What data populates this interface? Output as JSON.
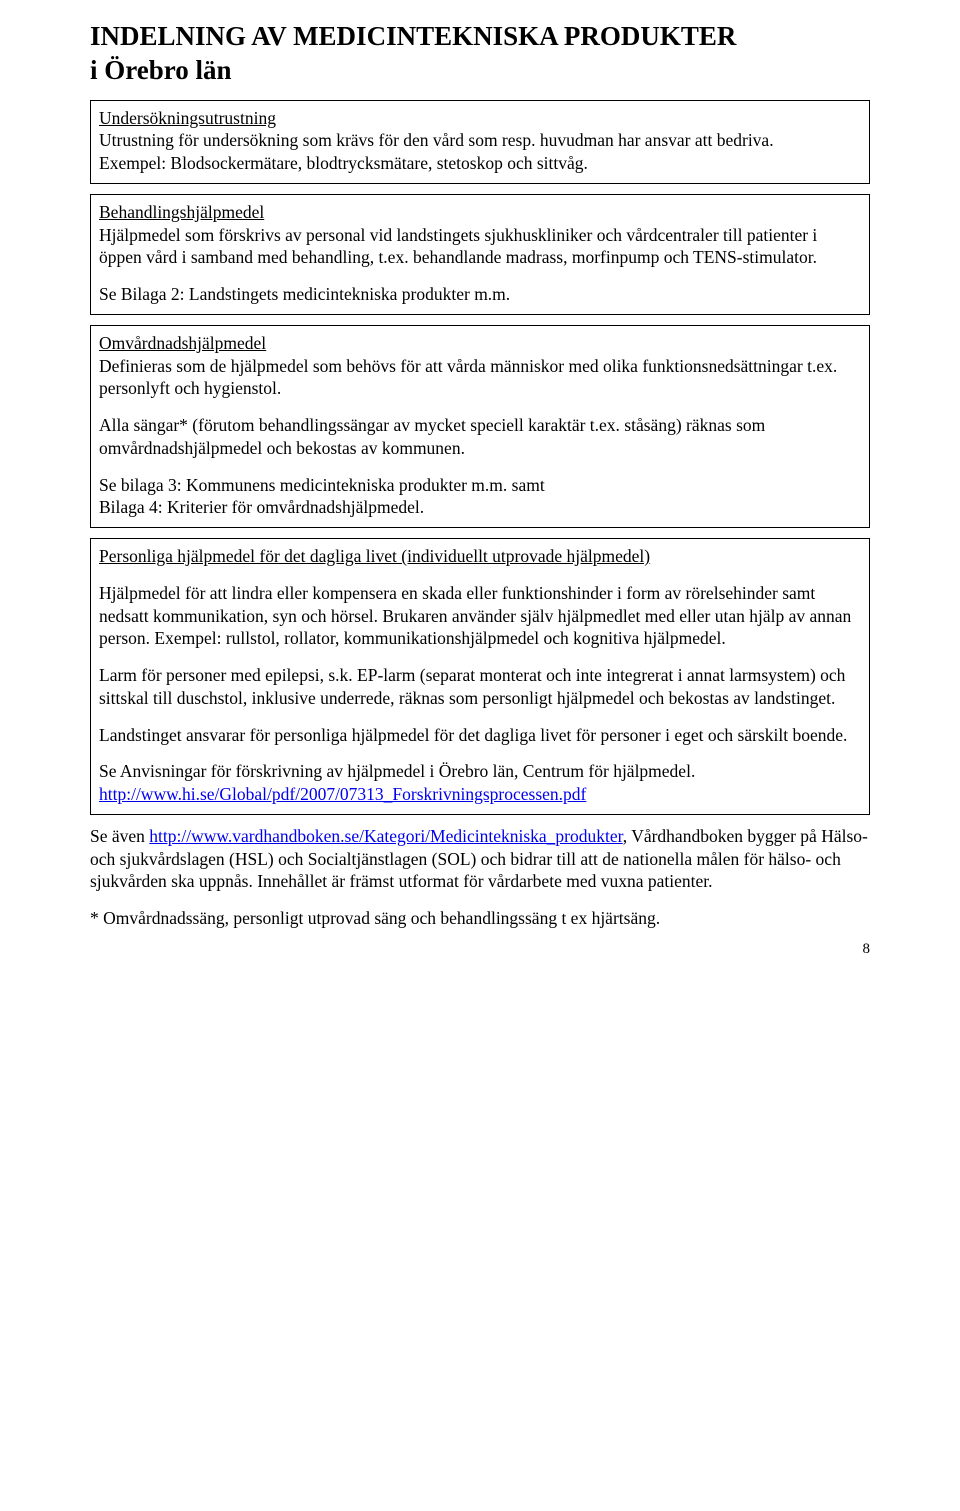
{
  "title_line1": "INDELNING AV MEDICINTEKNISKA PRODUKTER",
  "title_line2": "i Örebro län",
  "box1": {
    "heading": "Undersökningsutrustning",
    "p1": "Utrustning för undersökning som krävs för den vård som resp. huvudman har ansvar att bedriva.",
    "p2": "Exempel: Blodsockermätare, blodtrycksmätare, stetoskop och sittvåg."
  },
  "box2": {
    "heading": "Behandlingshjälpmedel",
    "p1": "Hjälpmedel som förskrivs av personal vid landstingets sjukhuskliniker och vårdcentraler till patienter i öppen vård i samband med behandling, t.ex. behandlande madrass, morfinpump och TENS-stimulator.",
    "p2": "Se Bilaga 2: Landstingets medicintekniska produkter m.m."
  },
  "box3": {
    "heading": "Omvårdnadshjälpmedel",
    "p1": "Definieras som de hjälpmedel som behövs för att vårda människor med olika funktionsnedsättningar t.ex. personlyft och hygienstol.",
    "p2": "Alla sängar* (förutom behandlingssängar av mycket speciell karaktär t.ex. ståsäng) räknas som omvårdnadshjälpmedel och bekostas av kommunen.",
    "p3": "Se bilaga 3: Kommunens medicintekniska produkter m.m. samt",
    "p4": "Bilaga 4: Kriterier för omvårdnadshjälpmedel."
  },
  "box4": {
    "heading": "Personliga hjälpmedel för det dagliga livet (individuellt utprovade hjälpmedel)",
    "p1": "Hjälpmedel för att lindra eller kompensera en skada eller funktionshinder i form av rörelsehinder samt nedsatt kommunikation, syn och hörsel. Brukaren använder själv hjälpmedlet med eller utan hjälp av annan person. Exempel: rullstol, rollator, kommunikationshjälpmedel och kognitiva hjälpmedel.",
    "p2": "Larm för personer med epilepsi, s.k. EP-larm (separat monterat och inte integrerat i annat larmsystem) och sittskal till duschstol, inklusive underrede, räknas som personligt hjälpmedel och bekostas av landstinget.",
    "p3": "Landstinget ansvarar för personliga hjälpmedel för det dagliga livet för personer i eget och särskilt boende.",
    "p4a": "Se Anvisningar för förskrivning av hjälpmedel i Örebro län, Centrum för hjälpmedel.",
    "p4_link": "http://www.hi.se/Global/pdf/2007/07313_Forskrivningsprocessen.pdf"
  },
  "after": {
    "p1a": "Se även ",
    "p1_link": "http://www.vardhandboken.se/Kategori/Medicintekniska_produkter",
    "p1b": ", Vårdhandboken bygger på Hälso- och sjukvårdslagen (HSL) och Socialtjänstlagen (SOL) och bidrar till att de nationella målen för hälso- och sjukvården ska uppnås. Innehållet är främst utformat för vårdarbete med vuxna patienter.",
    "p2": "* Omvårdnadssäng, personligt utprovad säng och behandlingssäng t ex hjärtsäng."
  },
  "page_number": "8"
}
